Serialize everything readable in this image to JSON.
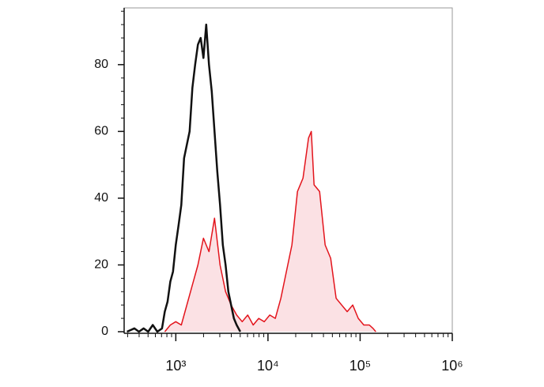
{
  "chart_data": {
    "type": "line",
    "xscale": "log",
    "xlim": [
      275,
      1000000
    ],
    "ylim": [
      0,
      97
    ],
    "xticks": [
      {
        "value": 1000,
        "label": "10³"
      },
      {
        "value": 10000,
        "label": "10⁴"
      },
      {
        "value": 100000,
        "label": "10⁵"
      },
      {
        "value": 1000000,
        "label": "10⁶"
      }
    ],
    "yticks": [
      0,
      20,
      40,
      60,
      80
    ],
    "series": [
      {
        "color": "#111111",
        "fill": null,
        "x": [
          295,
          355,
          398,
          447,
          501,
          562,
          631,
          708,
          759,
          813,
          871,
          933,
          1000,
          1072,
          1148,
          1230,
          1318,
          1413,
          1514,
          1622,
          1738,
          1862,
          1995,
          2138,
          2291,
          2455,
          2630,
          2818,
          3020,
          3236,
          3467,
          3715,
          3981,
          4266,
          4571,
          5012
        ],
        "values": [
          0,
          1,
          0,
          1,
          0,
          2,
          0,
          1,
          6,
          9,
          15,
          18,
          26,
          32,
          38,
          52,
          56,
          60,
          73,
          80,
          86,
          88,
          82,
          92,
          80,
          72,
          60,
          48,
          38,
          26,
          20,
          12,
          8,
          4,
          2,
          0
        ]
      },
      {
        "color": "#e3141c",
        "fill": "#fbe1e4",
        "x": [
          759,
          871,
          1000,
          1148,
          1318,
          1514,
          1738,
          1995,
          2291,
          2630,
          3020,
          3467,
          3981,
          4571,
          5248,
          6026,
          6918,
          7943,
          9120,
          10471,
          12023,
          13804,
          15849,
          18197,
          20893,
          23988,
          27542,
          29512,
          31623,
          36308,
          41687,
          47863,
          54954,
          63096,
          72444,
          83176,
          95499,
          109648,
          125893,
          138038,
          147911
        ],
        "values": [
          0,
          2,
          3,
          2,
          8,
          14,
          20,
          28,
          24,
          34,
          20,
          12,
          8,
          5,
          3,
          5,
          2,
          4,
          3,
          5,
          4,
          10,
          18,
          26,
          42,
          46,
          58,
          60,
          44,
          42,
          26,
          22,
          10,
          8,
          6,
          8,
          4,
          2,
          2,
          1,
          0
        ]
      }
    ]
  }
}
